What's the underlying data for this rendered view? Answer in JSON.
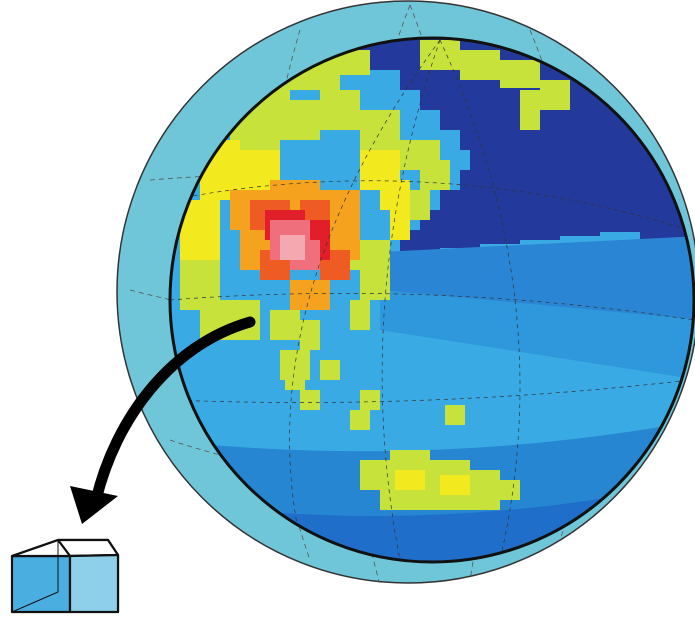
{
  "figure": {
    "subject": "globe-with-atmosphere-shell-grid-cells-and-extracted-cell",
    "colors": {
      "background": "#ffffff",
      "atmosphere_shell": "#6fc6d9",
      "grid_line": "#555555",
      "ocean_light": "#3aaae4",
      "ocean_mid": "#2390d8",
      "ocean_deep": "#1f6ec9",
      "polar_dark": "#23399c",
      "land_yellow_green": "#c7e23a",
      "land_yellow": "#f2ea1e",
      "hot_orange": "#f5a31f",
      "hot_red_orange": "#ee5b23",
      "hot_red": "#e21e2a",
      "hot_pink": "#ef6f7c",
      "hot_core": "#f4a9b0",
      "arrow": "#000000",
      "cube_front": "#4aaee0",
      "cube_side": "#8ed0ea",
      "cube_edge": "#000000"
    }
  }
}
